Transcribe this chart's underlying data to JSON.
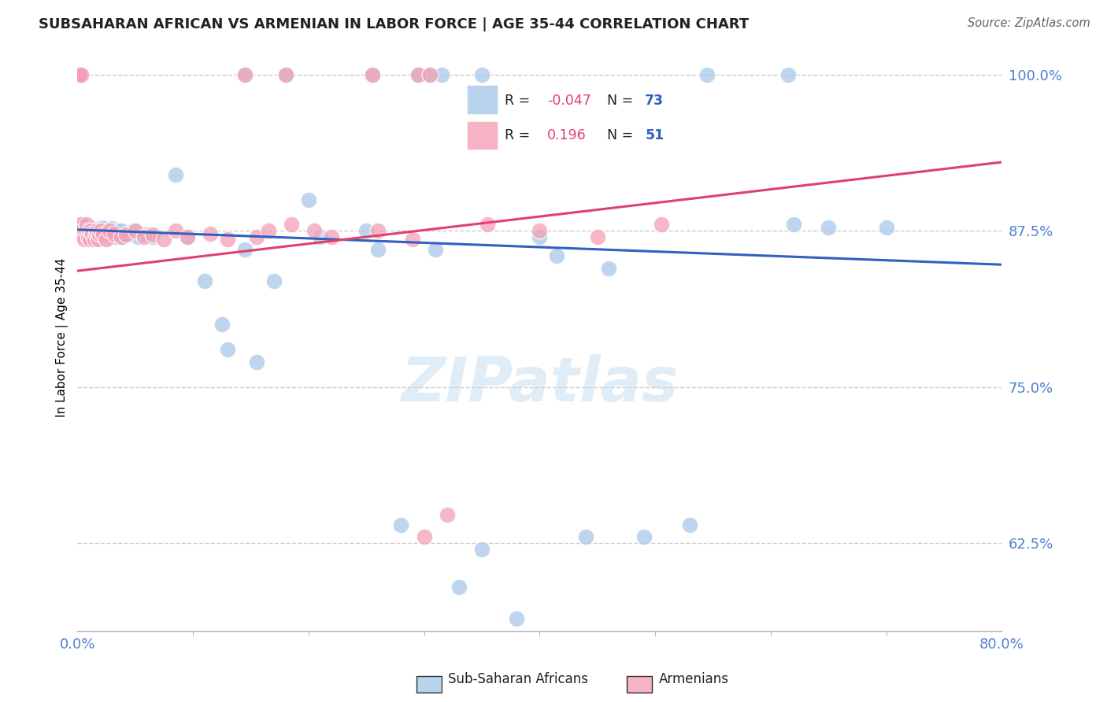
{
  "title": "SUBSAHARAN AFRICAN VS ARMENIAN IN LABOR FORCE | AGE 35-44 CORRELATION CHART",
  "source": "Source: ZipAtlas.com",
  "ylabel": "In Labor Force | Age 35-44",
  "xlim": [
    0.0,
    0.8
  ],
  "ylim": [
    0.555,
    1.025
  ],
  "ytick_vals": [
    0.625,
    0.75,
    0.875,
    1.0
  ],
  "ytick_labels": [
    "62.5%",
    "75.0%",
    "87.5%",
    "100.0%"
  ],
  "legend_r_blue": "-0.047",
  "legend_n_blue": "73",
  "legend_r_pink": "0.196",
  "legend_n_pink": "51",
  "blue_color": "#a8c8e8",
  "pink_color": "#f4a0b5",
  "trendline_blue_color": "#3060c0",
  "trendline_pink_color": "#e04070",
  "blue_scatter": {
    "x": [
      0.001,
      0.002,
      0.003,
      0.003,
      0.004,
      0.005,
      0.005,
      0.006,
      0.006,
      0.007,
      0.007,
      0.008,
      0.008,
      0.009,
      0.009,
      0.01,
      0.01,
      0.011,
      0.012,
      0.013,
      0.014,
      0.015,
      0.016,
      0.017,
      0.018,
      0.019,
      0.02,
      0.021,
      0.022,
      0.023,
      0.025,
      0.026,
      0.027,
      0.028,
      0.029,
      0.03,
      0.031,
      0.033,
      0.034,
      0.036,
      0.038,
      0.04,
      0.043,
      0.048,
      0.052,
      0.06,
      0.065,
      0.085,
      0.095,
      0.11,
      0.125,
      0.13,
      0.145,
      0.155,
      0.17,
      0.2,
      0.21,
      0.25,
      0.26,
      0.28,
      0.31,
      0.33,
      0.35,
      0.38,
      0.4,
      0.415,
      0.44,
      0.46,
      0.49,
      0.53,
      0.62,
      0.65,
      0.7
    ],
    "y": [
      0.875,
      0.88,
      0.875,
      0.88,
      0.875,
      0.87,
      0.88,
      0.875,
      0.87,
      0.878,
      0.873,
      0.875,
      0.87,
      0.878,
      0.873,
      0.875,
      0.87,
      0.875,
      0.872,
      0.87,
      0.877,
      0.873,
      0.87,
      0.875,
      0.872,
      0.87,
      0.875,
      0.878,
      0.872,
      0.877,
      0.873,
      0.875,
      0.87,
      0.875,
      0.872,
      0.877,
      0.873,
      0.87,
      0.875,
      0.872,
      0.875,
      0.87,
      0.872,
      0.875,
      0.87,
      0.872,
      0.87,
      0.92,
      0.87,
      0.835,
      0.8,
      0.78,
      0.86,
      0.77,
      0.835,
      0.9,
      0.87,
      0.875,
      0.86,
      0.64,
      0.86,
      0.59,
      0.62,
      0.565,
      0.87,
      0.855,
      0.63,
      0.845,
      0.63,
      0.64,
      0.88,
      0.878,
      0.878
    ]
  },
  "blue_top": {
    "x": [
      0.001,
      0.002,
      0.003,
      0.145,
      0.18,
      0.255,
      0.295,
      0.305,
      0.315,
      0.35,
      0.545,
      0.615
    ],
    "y": [
      1.0,
      1.0,
      1.0,
      1.0,
      1.0,
      1.0,
      1.0,
      1.0,
      1.0,
      1.0,
      1.0,
      1.0
    ]
  },
  "pink_scatter": {
    "x": [
      0.001,
      0.002,
      0.003,
      0.004,
      0.005,
      0.006,
      0.007,
      0.008,
      0.009,
      0.01,
      0.011,
      0.012,
      0.013,
      0.015,
      0.016,
      0.017,
      0.018,
      0.019,
      0.02,
      0.022,
      0.025,
      0.028,
      0.032,
      0.038,
      0.042,
      0.05,
      0.058,
      0.065,
      0.075,
      0.085,
      0.095,
      0.115,
      0.13,
      0.155,
      0.165,
      0.185,
      0.205,
      0.22,
      0.26,
      0.29,
      0.3,
      0.32,
      0.355,
      0.4,
      0.45,
      0.505
    ],
    "y": [
      0.875,
      0.878,
      0.88,
      0.875,
      0.873,
      0.868,
      0.875,
      0.88,
      0.87,
      0.875,
      0.868,
      0.875,
      0.873,
      0.868,
      0.873,
      0.875,
      0.868,
      0.873,
      0.875,
      0.872,
      0.868,
      0.875,
      0.873,
      0.87,
      0.872,
      0.875,
      0.87,
      0.872,
      0.868,
      0.875,
      0.87,
      0.873,
      0.868,
      0.87,
      0.875,
      0.88,
      0.875,
      0.87,
      0.875,
      0.868,
      0.63,
      0.648,
      0.88,
      0.875,
      0.87,
      0.88
    ]
  },
  "pink_top": {
    "x": [
      0.001,
      0.002,
      0.003,
      0.145,
      0.18,
      0.255,
      0.295,
      0.305
    ],
    "y": [
      1.0,
      1.0,
      1.0,
      1.0,
      1.0,
      1.0,
      1.0,
      1.0
    ]
  },
  "watermark_text": "ZIPatlas",
  "background_color": "#ffffff",
  "grid_color": "#cccccc",
  "grid_style": "--"
}
